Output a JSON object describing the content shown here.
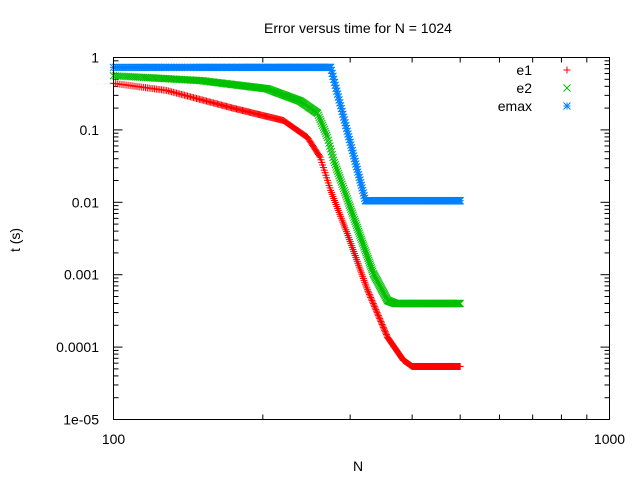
{
  "chart_data": {
    "type": "scatter",
    "title": "Error versus time for N = 1024",
    "xlabel": "N",
    "ylabel": "t (s)",
    "xscale": "log",
    "yscale": "log",
    "xlim": [
      100,
      1000
    ],
    "ylim": [
      1e-05,
      1
    ],
    "x_ticks": [
      {
        "value": 100,
        "label": "100"
      },
      {
        "value": 1000,
        "label": "1000"
      }
    ],
    "y_ticks": [
      {
        "value": 1,
        "label": "1"
      },
      {
        "value": 0.1,
        "label": "0.1"
      },
      {
        "value": 0.01,
        "label": "0.01"
      },
      {
        "value": 0.001,
        "label": "0.001"
      },
      {
        "value": 0.0001,
        "label": "0.0001"
      },
      {
        "value": 1e-05,
        "label": "1e-05"
      }
    ],
    "grid": false,
    "legend_position": "top-right",
    "series": [
      {
        "name": "e1",
        "color": "#ff0000",
        "marker": "plus",
        "points": [
          [
            100,
            0.44
          ],
          [
            128,
            0.35
          ],
          [
            174,
            0.2
          ],
          [
            220,
            0.135
          ],
          [
            246,
            0.079
          ],
          [
            261,
            0.042
          ],
          [
            274,
            0.0146
          ],
          [
            296,
            0.0037
          ],
          [
            325,
            0.00062
          ],
          [
            357,
            0.000136
          ],
          [
            384,
            6.6e-05
          ],
          [
            400,
            5.4e-05
          ],
          [
            500,
            5.4e-05
          ]
        ]
      },
      {
        "name": "e2",
        "color": "#00c000",
        "marker": "cross",
        "points": [
          [
            100,
            0.56
          ],
          [
            150,
            0.48
          ],
          [
            204,
            0.37
          ],
          [
            238,
            0.25
          ],
          [
            258,
            0.17
          ],
          [
            270,
            0.079
          ],
          [
            278,
            0.038
          ],
          [
            305,
            0.0062
          ],
          [
            334,
            0.00104
          ],
          [
            357,
            0.00044
          ],
          [
            370,
            0.0004
          ],
          [
            500,
            0.0004
          ]
        ]
      },
      {
        "name": "emax",
        "color": "#0080ff",
        "marker": "star",
        "points": [
          [
            100,
            0.73
          ],
          [
            274,
            0.73
          ],
          [
            322,
            0.0105
          ],
          [
            500,
            0.0105
          ]
        ]
      }
    ]
  }
}
